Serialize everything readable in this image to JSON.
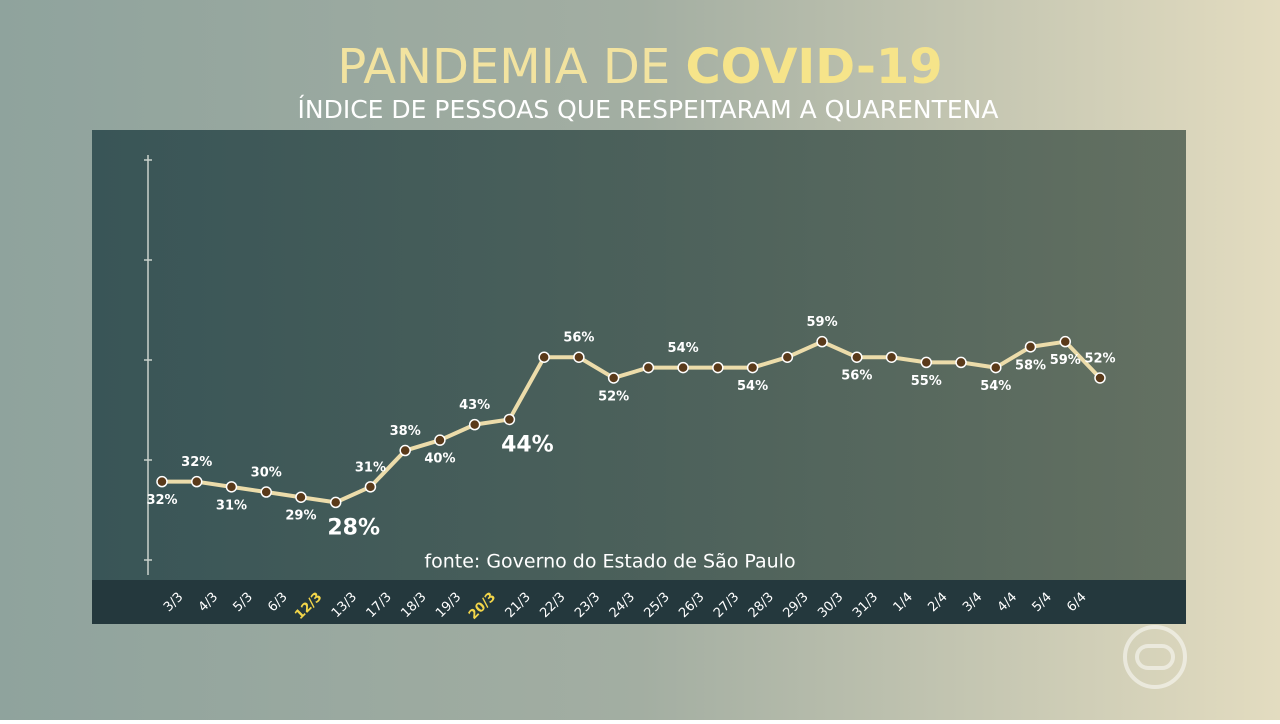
{
  "chart_data": {
    "type": "line",
    "title_parts": [
      "PANDEMIA DE",
      "COVID-19"
    ],
    "subtitle": "ÍNDICE DE PESSOAS QUE RESPEITARAM A QUARENTENA",
    "source": "fonte: Governo do Estado de São Paulo",
    "categories": [
      "3/3",
      "4/3",
      "5/3",
      "6/3",
      "12/3",
      "13/3",
      "17/3",
      "18/3",
      "19/3",
      "20/3",
      "21/3",
      "22/3",
      "23/3",
      "24/3",
      "25/3",
      "26/3",
      "27/3",
      "28/3",
      "29/3",
      "30/3",
      "31/3",
      "1/4",
      "2/4",
      "3/4",
      "4/4",
      "5/4",
      "6/4",
      null
    ],
    "values": [
      32,
      32,
      31,
      30,
      29,
      28,
      31,
      38,
      40,
      43,
      44,
      56,
      56,
      52,
      54,
      54,
      54,
      54,
      56,
      59,
      56,
      56,
      55,
      55,
      54,
      58,
      59,
      52
    ],
    "value_labels": [
      "32%",
      "32%",
      "31%",
      "30%",
      "29%",
      "28%",
      "31%",
      "38%",
      "40%",
      "43%",
      "44%",
      null,
      "56%",
      "52%",
      null,
      "54%",
      null,
      "54%",
      null,
      "59%",
      "56%",
      null,
      "55%",
      null,
      "54%",
      "58%",
      "59%",
      "52%"
    ],
    "line_color": "#ecdcaa",
    "marker_color": "#5a3a1a",
    "highlight_color": "#f3d64a",
    "highlight_categories": [
      4,
      9
    ],
    "highlight_points": [
      5,
      10
    ],
    "ylim": [
      14,
      95
    ]
  }
}
